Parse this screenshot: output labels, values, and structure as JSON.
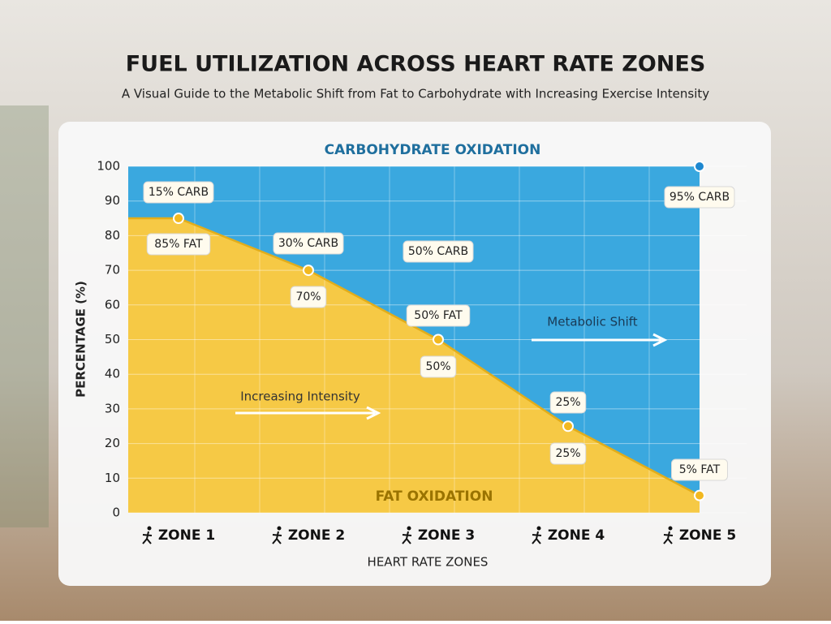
{
  "chart_data": {
    "type": "stacked-area",
    "title": "FUEL UTILIZATION ACROSS HEART RATE ZONES",
    "subtitle": "A Visual Guide to the Metabolic Shift from Fat to Carbohydrate with Increasing Exercise Intensity",
    "x_label": "HEART RATE ZONES",
    "y_label": "PERCENTAGE (%)",
    "categories": [
      "ZONE 1",
      "ZONE 2",
      "ZONE 3",
      "ZONE 4",
      "ZONE 5"
    ],
    "series": [
      {
        "name": "FAT OXIDATION",
        "color": "#f6c945",
        "values": [
          85,
          70,
          50,
          25,
          5
        ],
        "value_labels": [
          "85% FAT",
          "70%",
          "50% FAT",
          "25%",
          "5% FAT"
        ]
      },
      {
        "name": "CARBOHYDRATE OXIDATION",
        "color": "#3aa8df",
        "values": [
          15,
          30,
          50,
          75,
          95
        ],
        "value_labels": [
          "15% CARB",
          "30% CARB",
          "50% CARB",
          null,
          "95% CARB"
        ]
      }
    ],
    "annotations": [
      "50%",
      "25%",
      "Increasing Intensity",
      "Metabolic Shift"
    ],
    "ylim": [
      0,
      100
    ],
    "yticks": [
      0,
      10,
      20,
      30,
      40,
      50,
      60,
      70,
      80,
      90,
      100
    ],
    "grid": true
  }
}
